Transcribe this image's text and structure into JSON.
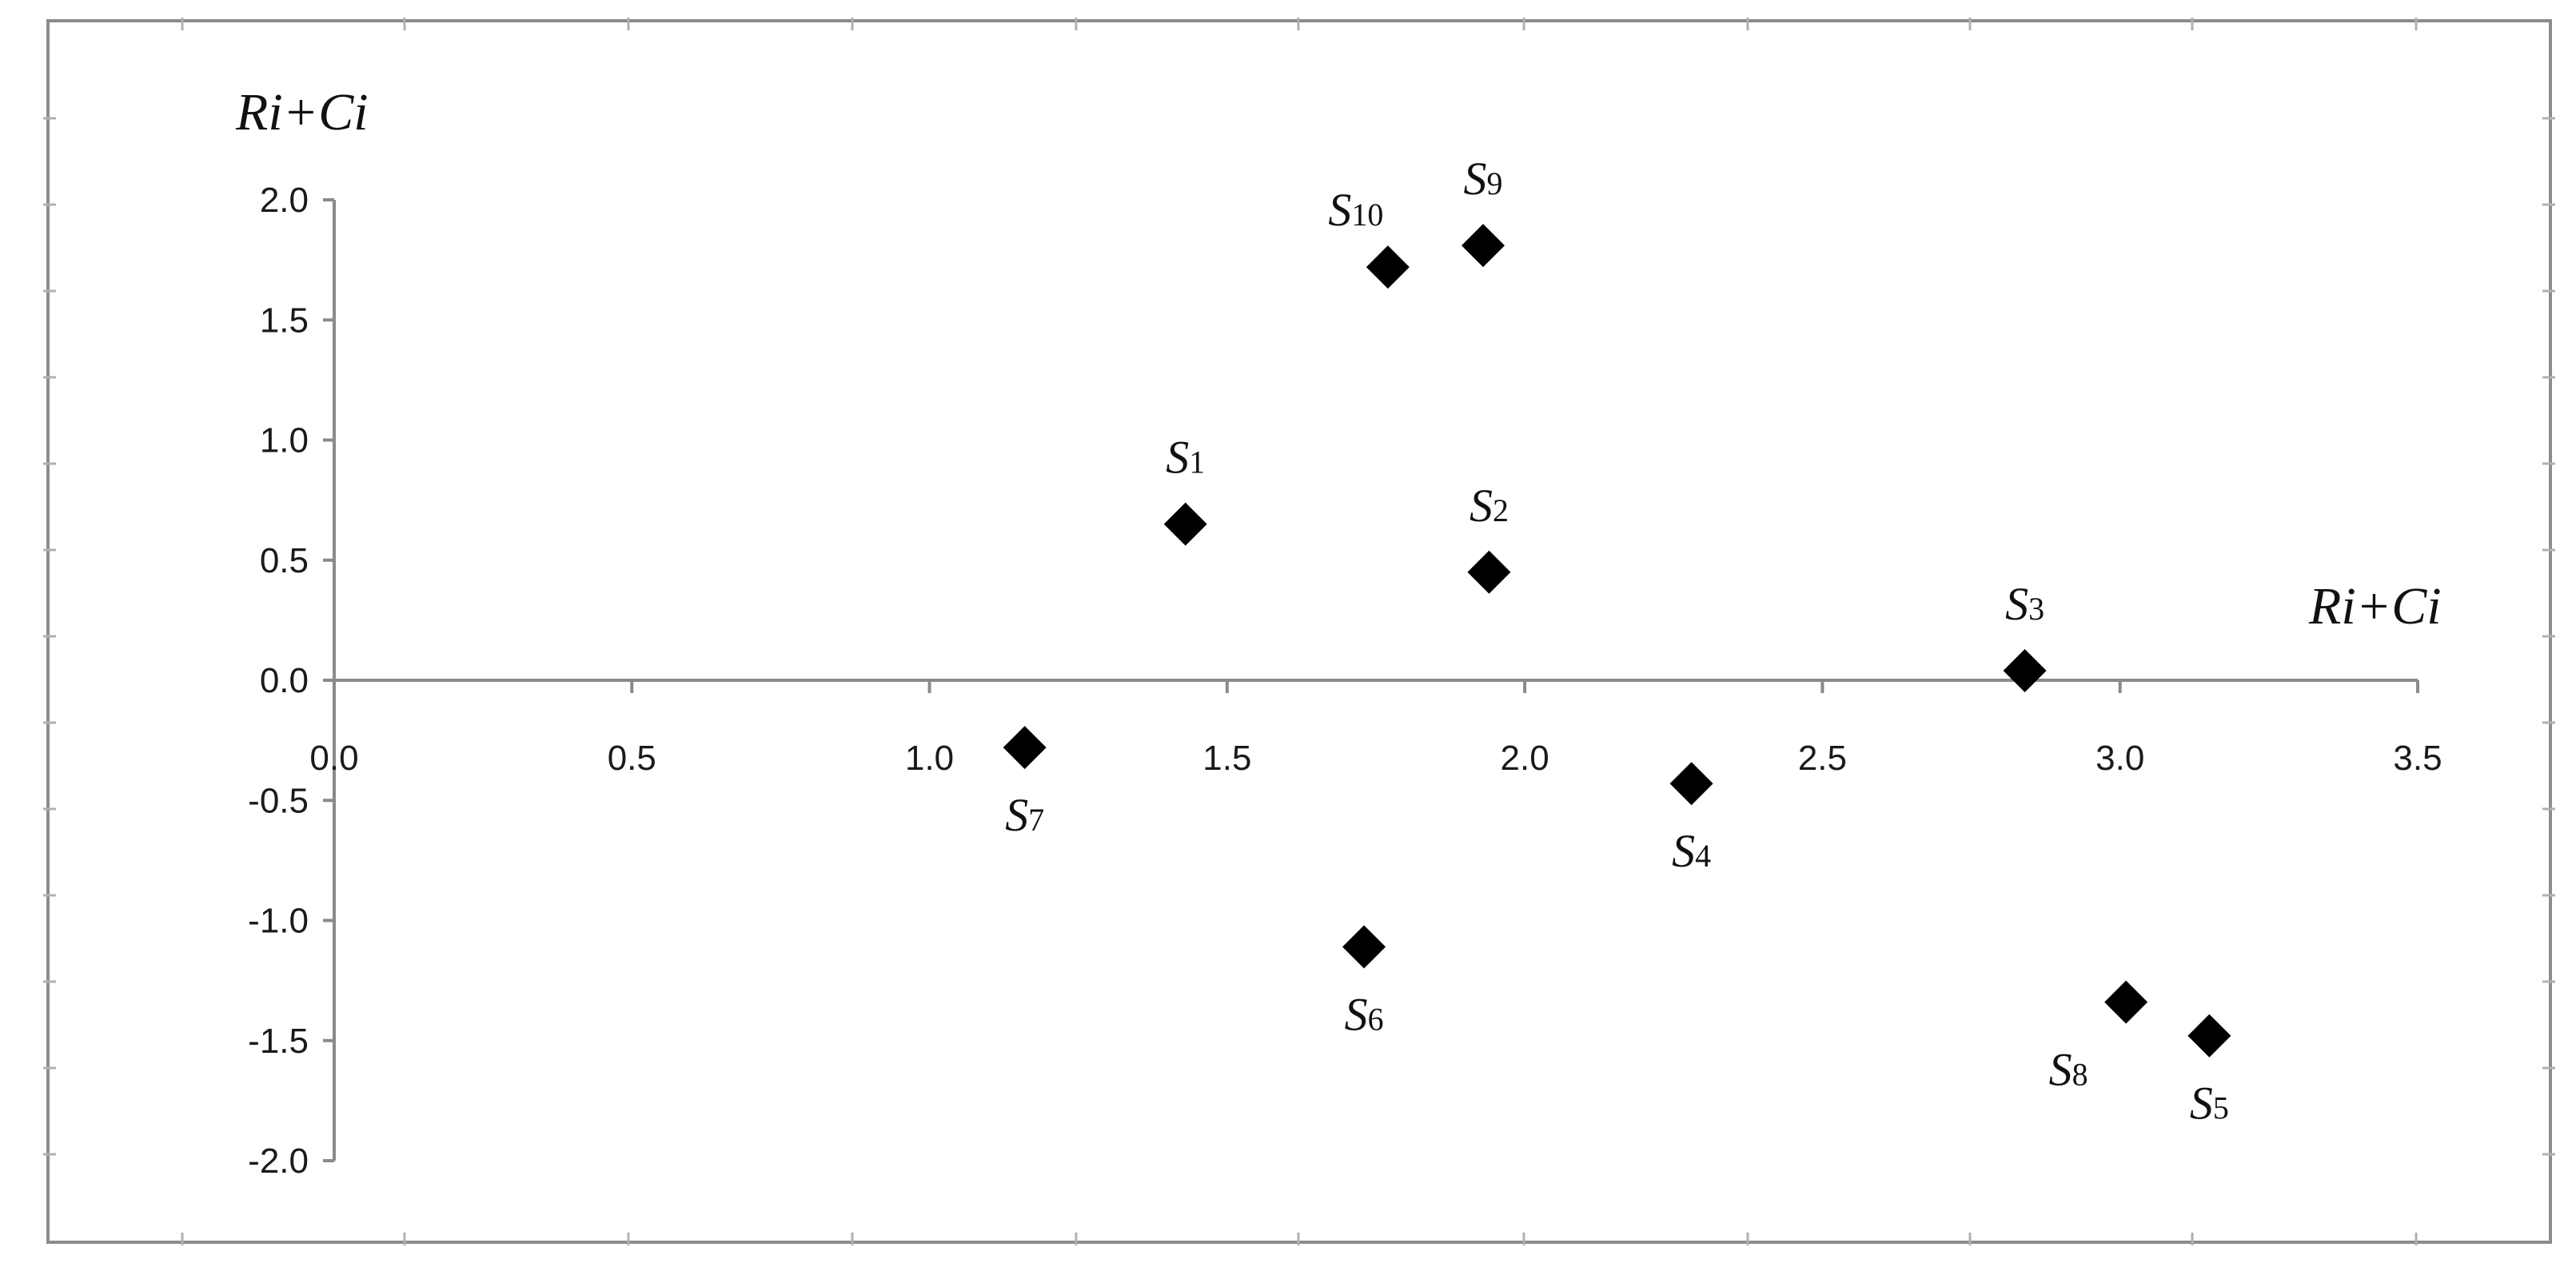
{
  "chart_data": {
    "type": "scatter",
    "xlabel": "Ri+Ci",
    "ylabel": "Ri+Ci",
    "xlim": [
      0,
      3.5
    ],
    "ylim": [
      -2.0,
      2.0
    ],
    "x_ticks": [
      "0.0",
      "0.5",
      "1.0",
      "1.5",
      "2.0",
      "2.5",
      "3.0",
      "3.5"
    ],
    "y_ticks": [
      "2.0",
      "1.5",
      "1.0",
      "0.5",
      "0.0",
      "-0.5",
      "-1.0",
      "-1.5",
      "-2.0"
    ],
    "grid": false,
    "legend": "none",
    "marker": "diamond",
    "marker_color": "#000000",
    "points": [
      {
        "label": "S",
        "sub": "1",
        "x": 1.43,
        "y": 0.65
      },
      {
        "label": "S",
        "sub": "2",
        "x": 1.94,
        "y": 0.45
      },
      {
        "label": "S",
        "sub": "3",
        "x": 2.84,
        "y": 0.04
      },
      {
        "label": "S",
        "sub": "4",
        "x": 2.28,
        "y": -0.43
      },
      {
        "label": "S",
        "sub": "5",
        "x": 3.15,
        "y": -1.48
      },
      {
        "label": "S",
        "sub": "6",
        "x": 1.73,
        "y": -1.11
      },
      {
        "label": "S",
        "sub": "7",
        "x": 1.16,
        "y": -0.28
      },
      {
        "label": "S",
        "sub": "8",
        "x": 3.01,
        "y": -1.34
      },
      {
        "label": "S",
        "sub": "9",
        "x": 1.93,
        "y": 1.81
      },
      {
        "label": "S",
        "sub": "10",
        "x": 1.77,
        "y": 1.72
      }
    ]
  }
}
